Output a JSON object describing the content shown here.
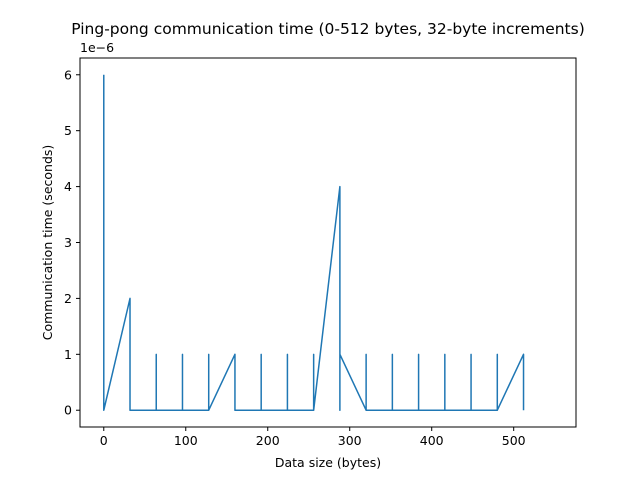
{
  "chart_data": {
    "type": "line",
    "title": "Ping-pong communication time (0-512 bytes, 32-byte increments)",
    "xlabel": "Data size (bytes)",
    "ylabel": "Communication time (seconds)",
    "y_offset_label": "1e−6",
    "y_scale_factor": 1e-06,
    "xlim": [
      -29,
      576
    ],
    "ylim": [
      -0.3,
      6.3
    ],
    "xticks": [
      0,
      100,
      200,
      300,
      400,
      500
    ],
    "yticks": [
      0,
      1,
      2,
      3,
      4,
      5,
      6
    ],
    "grid": false,
    "legend": "none",
    "series": [
      {
        "color": "#1f77b4",
        "points": [
          [
            0,
            6
          ],
          [
            0,
            0
          ],
          [
            32,
            2
          ],
          [
            32,
            0
          ],
          [
            64,
            0
          ],
          [
            64,
            1
          ],
          [
            64,
            0
          ],
          [
            96,
            0
          ],
          [
            96,
            1
          ],
          [
            96,
            0
          ],
          [
            128,
            0
          ],
          [
            128,
            1
          ],
          [
            128,
            0
          ],
          [
            160,
            1
          ],
          [
            160,
            0
          ],
          [
            192,
            0
          ],
          [
            192,
            1
          ],
          [
            192,
            0
          ],
          [
            224,
            0
          ],
          [
            224,
            1
          ],
          [
            224,
            0
          ],
          [
            256,
            0
          ],
          [
            256,
            1
          ],
          [
            256,
            0
          ],
          [
            288,
            4
          ],
          [
            288,
            0
          ],
          [
            288,
            1
          ],
          [
            320,
            0
          ],
          [
            320,
            1
          ],
          [
            320,
            0
          ],
          [
            352,
            0
          ],
          [
            352,
            1
          ],
          [
            352,
            0
          ],
          [
            384,
            0
          ],
          [
            384,
            1
          ],
          [
            384,
            0
          ],
          [
            416,
            0
          ],
          [
            416,
            1
          ],
          [
            416,
            0
          ],
          [
            448,
            0
          ],
          [
            448,
            1
          ],
          [
            448,
            0
          ],
          [
            480,
            0
          ],
          [
            480,
            1
          ],
          [
            480,
            0
          ],
          [
            512,
            1
          ],
          [
            512,
            0
          ]
        ]
      }
    ]
  }
}
